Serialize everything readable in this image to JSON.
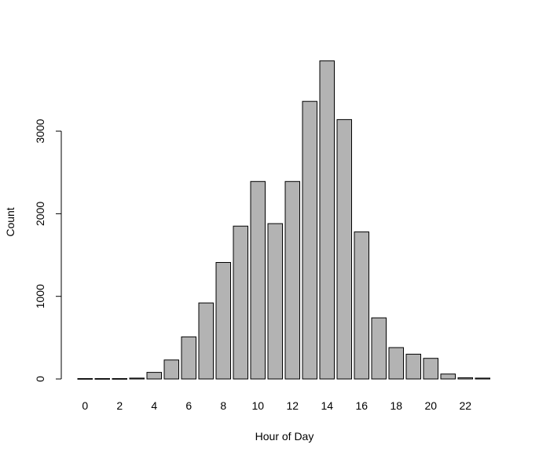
{
  "chart_data": {
    "type": "bar",
    "title": "",
    "xlabel": "Hour of Day",
    "ylabel": "Count",
    "categories": [
      "0",
      "1",
      "2",
      "3",
      "4",
      "5",
      "6",
      "7",
      "8",
      "9",
      "10",
      "11",
      "12",
      "13",
      "14",
      "15",
      "16",
      "17",
      "18",
      "19",
      "20",
      "21",
      "22",
      "23"
    ],
    "values": [
      5,
      5,
      5,
      10,
      80,
      230,
      510,
      920,
      1410,
      1850,
      2390,
      1880,
      2390,
      3360,
      3850,
      3140,
      1780,
      740,
      380,
      300,
      250,
      60,
      15,
      10
    ],
    "x_tick_labels": [
      "0",
      "2",
      "4",
      "6",
      "8",
      "10",
      "12",
      "14",
      "16",
      "18",
      "20",
      "22"
    ],
    "y_ticks": [
      0,
      1000,
      2000,
      3000
    ],
    "ylim": [
      0,
      3850
    ],
    "grid": false,
    "bar_fill": "#b3b3b3",
    "bar_stroke": "#000000"
  }
}
